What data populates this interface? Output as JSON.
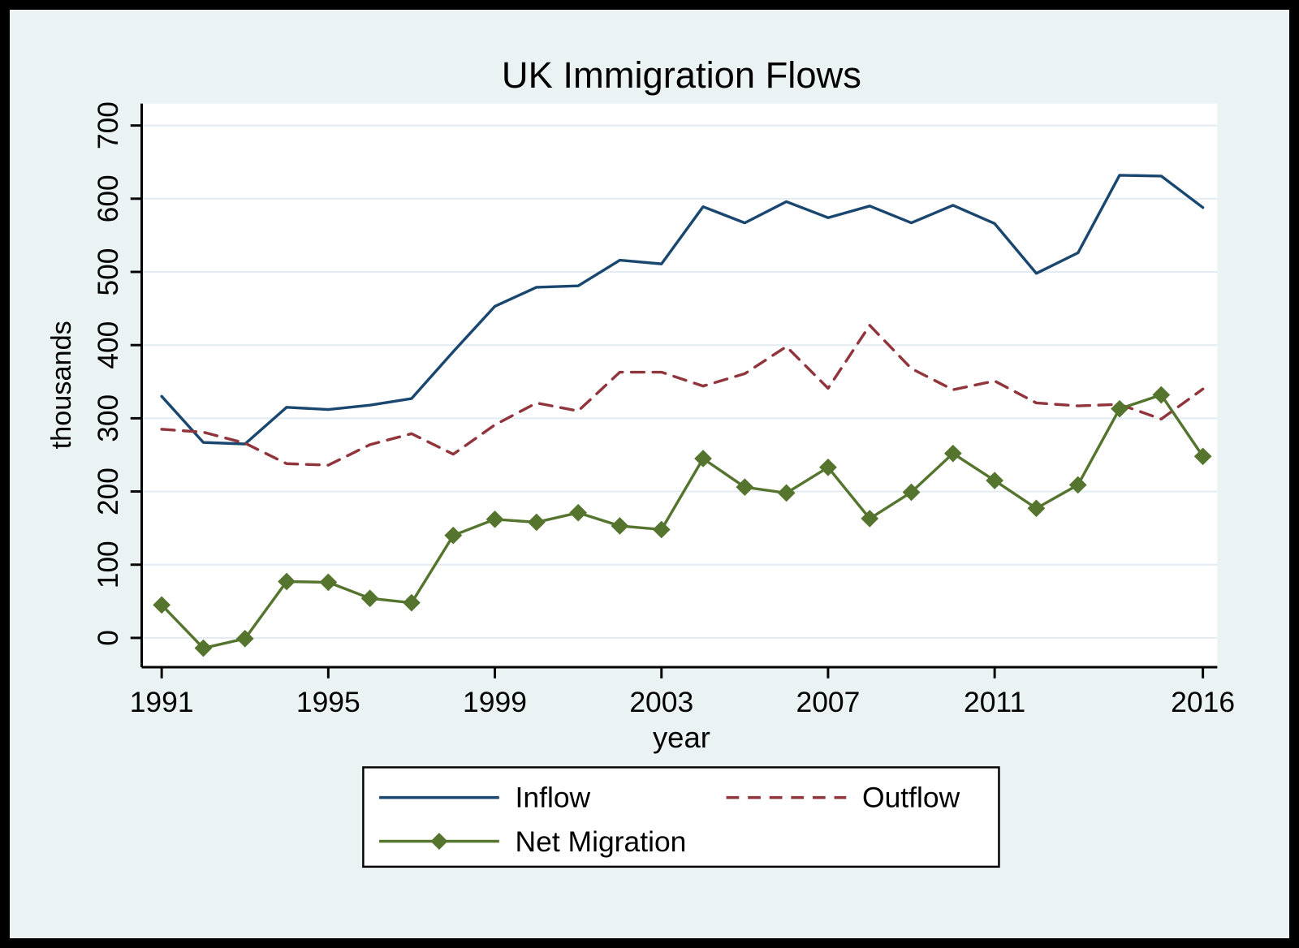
{
  "page": {
    "background_color": "#eaf2f3",
    "frame_color": "#000000",
    "plot_background_color": "#ffffff",
    "gridline_color": "#e2ebf1",
    "title_color": "#1e2d53"
  },
  "chart_data": {
    "type": "line",
    "title": "UK Immigration Flows",
    "xlabel": "year",
    "ylabel": "thousands",
    "grid": true,
    "legend_position": "bottom",
    "x": [
      1991,
      1992,
      1993,
      1994,
      1995,
      1996,
      1997,
      1998,
      1999,
      2000,
      2001,
      2002,
      2003,
      2004,
      2005,
      2006,
      2007,
      2008,
      2009,
      2010,
      2011,
      2012,
      2013,
      2014,
      2015,
      2016
    ],
    "xticks": [
      1991,
      1995,
      1999,
      2003,
      2007,
      2011,
      2016
    ],
    "yticks": [
      0,
      100,
      200,
      300,
      400,
      500,
      600,
      700
    ],
    "ylim": [
      -40,
      730
    ],
    "xlim": [
      1990.5,
      2016.4
    ],
    "series": [
      {
        "name": "Inflow",
        "color": "#1a476f",
        "dash": "solid",
        "marker": "none",
        "values": [
          330,
          267,
          265,
          315,
          312,
          318,
          327,
          391,
          453,
          479,
          481,
          516,
          511,
          589,
          567,
          596,
          574,
          590,
          567,
          591,
          566,
          498,
          526,
          632,
          631,
          588
        ]
      },
      {
        "name": "Outflow",
        "color": "#90353b",
        "dash": "dashed",
        "marker": "none",
        "values": [
          285,
          281,
          266,
          238,
          236,
          264,
          279,
          251,
          291,
          321,
          310,
          363,
          363,
          344,
          361,
          398,
          341,
          427,
          368,
          339,
          351,
          321,
          317,
          319,
          299,
          340
        ]
      },
      {
        "name": "Net Migration",
        "color": "#55752f",
        "dash": "solid",
        "marker": "diamond",
        "values": [
          45,
          -14,
          -1,
          77,
          76,
          54,
          48,
          140,
          162,
          158,
          171,
          153,
          148,
          245,
          206,
          198,
          233,
          163,
          199,
          252,
          215,
          177,
          209,
          313,
          332,
          248
        ]
      }
    ]
  }
}
